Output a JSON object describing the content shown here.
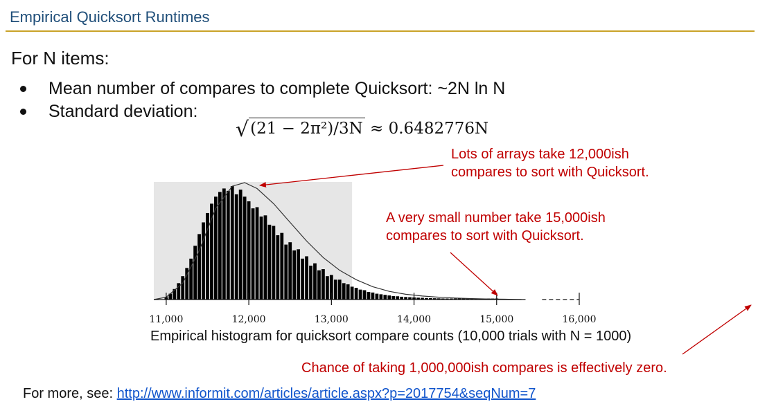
{
  "slide": {
    "title": "Empirical Quicksort Runtimes",
    "intro": "For N items:",
    "bullets": [
      "Mean number of compares to complete Quicksort: ~2N ln N",
      "Standard deviation:"
    ],
    "formula": {
      "radicand": "(21 − 2π²)/3N",
      "approx": "≈ 0.6482776N"
    },
    "caption": "Empirical histogram for quicksort compare counts (10,000 trials with N = 1000)",
    "more_prefix": "For more, see: ",
    "more_link": "http://www.informit.com/articles/article.aspx?p=2017754&seqNum=7"
  },
  "annotations": {
    "peak": [
      "Lots of arrays take 12,000ish",
      "compares to sort with Quicksort."
    ],
    "tail": [
      "A very small number take 15,000ish",
      "compares to sort with Quicksort."
    ],
    "million": "Chance of taking 1,000,000ish compares is effectively zero."
  },
  "colors": {
    "title": "#1f4e79",
    "rule": "#c9a227",
    "annotation": "#c00000",
    "link": "#1155cc",
    "shade": "#e6e6e6",
    "bar": "#000000"
  },
  "chart_data": {
    "type": "bar",
    "title": "",
    "xlabel": "",
    "ylabel": "",
    "xlim": [
      10850,
      16000
    ],
    "ylim": [
      0,
      1
    ],
    "x_ticks": [
      11000,
      12000,
      13000,
      14000,
      15000,
      16000
    ],
    "x_tick_labels": [
      "11,000",
      "12,000",
      "13,000",
      "14,000",
      "15,000",
      "16,000"
    ],
    "shaded_range": [
      10850,
      13250
    ],
    "bar_width": 40,
    "x": [
      11000,
      11050,
      11100,
      11150,
      11200,
      11250,
      11300,
      11350,
      11400,
      11450,
      11500,
      11550,
      11600,
      11650,
      11700,
      11750,
      11800,
      11850,
      11900,
      11950,
      12000,
      12050,
      12100,
      12150,
      12200,
      12250,
      12300,
      12350,
      12400,
      12450,
      12500,
      12550,
      12600,
      12650,
      12700,
      12750,
      12800,
      12850,
      12900,
      12950,
      13000,
      13050,
      13100,
      13150,
      13200,
      13250,
      13300,
      13350,
      13400,
      13450,
      13500,
      13550,
      13600,
      13650,
      13700,
      13750,
      13800,
      13850,
      13900,
      13950,
      14000,
      14050,
      14100,
      14150,
      14200,
      14250,
      14300,
      14350,
      14400,
      14450,
      14500,
      14550,
      14600,
      14650,
      14700,
      14750,
      14800,
      14850,
      14900,
      14950,
      15000
    ],
    "values": [
      0.02,
      0.05,
      0.09,
      0.14,
      0.2,
      0.27,
      0.35,
      0.46,
      0.56,
      0.66,
      0.74,
      0.82,
      0.88,
      0.92,
      0.95,
      0.93,
      0.97,
      0.9,
      0.94,
      0.88,
      0.84,
      0.78,
      0.79,
      0.71,
      0.72,
      0.64,
      0.63,
      0.55,
      0.57,
      0.47,
      0.49,
      0.42,
      0.43,
      0.35,
      0.37,
      0.29,
      0.31,
      0.25,
      0.26,
      0.2,
      0.21,
      0.17,
      0.17,
      0.14,
      0.13,
      0.11,
      0.1,
      0.085,
      0.08,
      0.065,
      0.06,
      0.05,
      0.045,
      0.04,
      0.035,
      0.03,
      0.028,
      0.024,
      0.022,
      0.02,
      0.018,
      0.016,
      0.015,
      0.013,
      0.012,
      0.011,
      0.01,
      0.009,
      0.008,
      0.007,
      0.007,
      0.006,
      0.006,
      0.005,
      0.005,
      0.004,
      0.004,
      0.004,
      0.003,
      0.003,
      0.003
    ],
    "fit_curve": {
      "x": [
        10850,
        11000,
        11200,
        11400,
        11600,
        11800,
        11950,
        12100,
        12300,
        12500,
        12700,
        12900,
        13100,
        13300,
        13500,
        13700,
        13900,
        14100,
        14300,
        14500,
        14700,
        14900,
        15100,
        15300
      ],
      "y": [
        0.0,
        0.02,
        0.14,
        0.42,
        0.78,
        0.97,
        1.0,
        0.95,
        0.82,
        0.66,
        0.5,
        0.36,
        0.25,
        0.17,
        0.11,
        0.07,
        0.045,
        0.03,
        0.02,
        0.013,
        0.008,
        0.005,
        0.003,
        0.0
      ]
    }
  }
}
